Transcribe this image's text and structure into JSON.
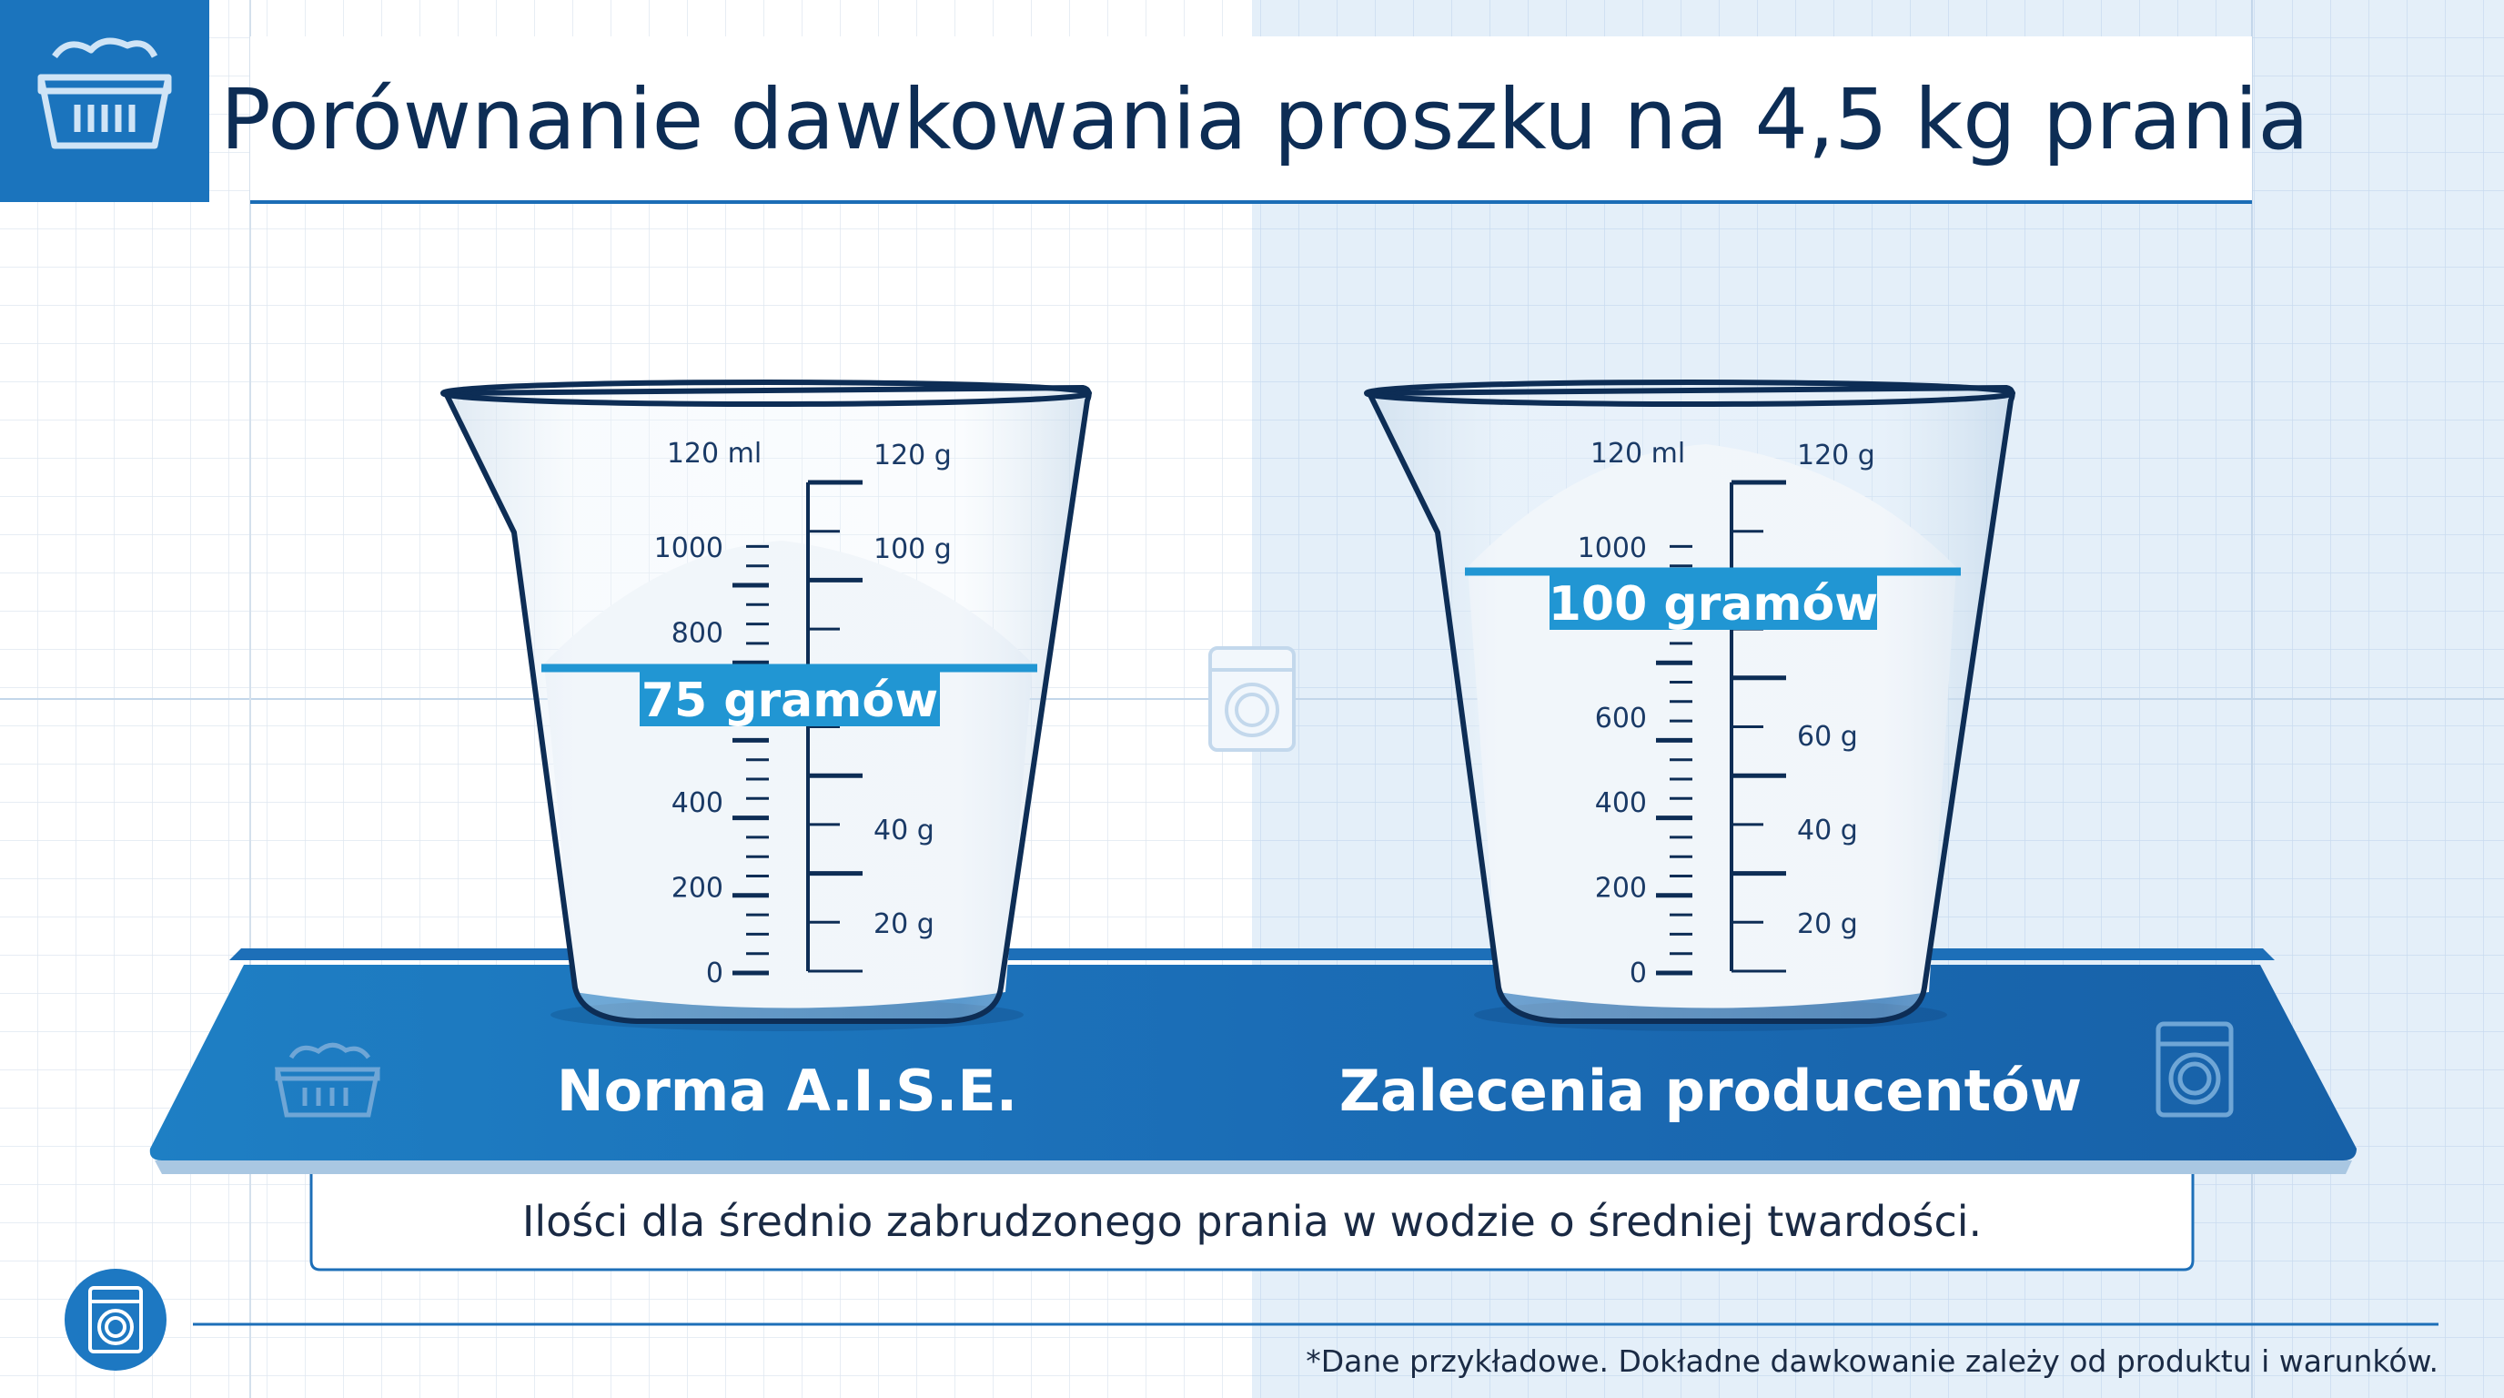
{
  "title": "Porównanie dawkowania proszku na 4,5 kg prania",
  "colors": {
    "navy": "#0d2d55",
    "brand_blue": "#1d6fb8",
    "band_blue": "#2196d3",
    "right_bg": "#e4eff9"
  },
  "beakers": [
    {
      "label": "Norma A.I.S.E.",
      "dose_label": "75 gramów",
      "dose_grams": 75,
      "ml_unit_label": "120 ml",
      "ml_labels": [
        "1000",
        "800",
        "400",
        "200",
        "0"
      ],
      "g_labels": [
        "120 g",
        "100 g",
        "40 g",
        "20 g"
      ]
    },
    {
      "label": "Zalecenia producentów",
      "dose_label": "100 gramów",
      "dose_grams": 100,
      "ml_unit_label": "120 ml",
      "ml_labels": [
        "1000",
        "600",
        "400",
        "200",
        "0"
      ],
      "g_labels": [
        "120 g",
        "60 g",
        "40 g",
        "20 g"
      ]
    }
  ],
  "caption": "Ilości dla średnio zabrudzonego prania w wodzie o średniej twardości.",
  "footnote": "*Dane przykładowe. Dokładne dawkowanie zależy od produktu i warunków.",
  "icons": [
    "laundry-basket-icon",
    "washing-machine-icon"
  ]
}
